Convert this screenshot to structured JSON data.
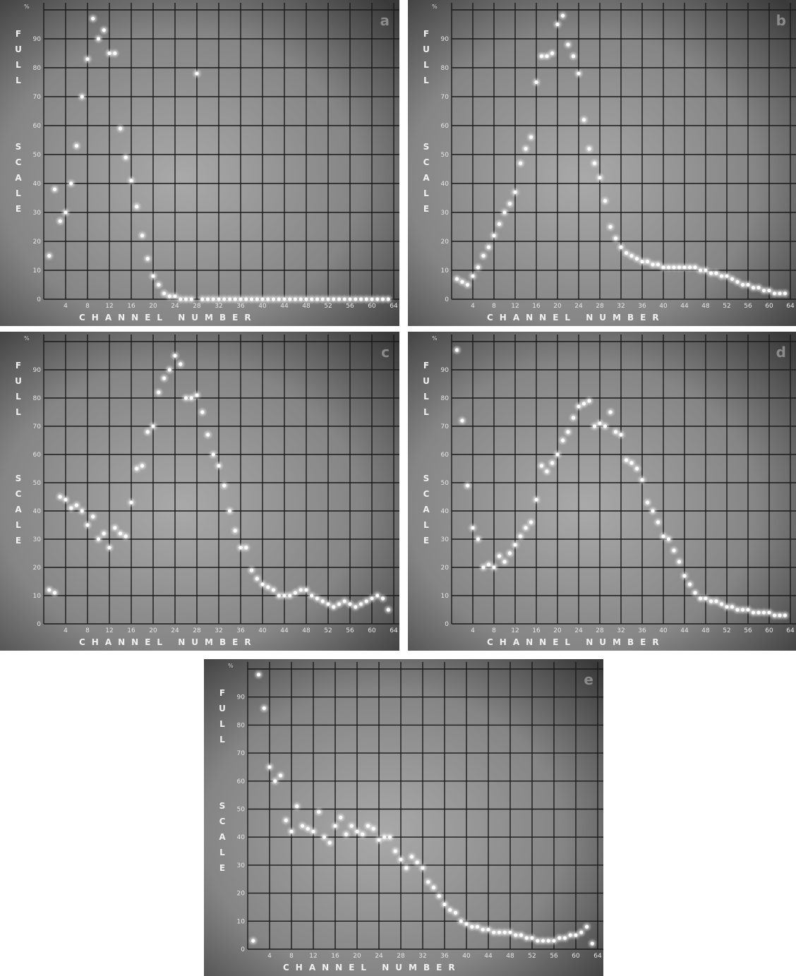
{
  "chart_data": [
    {
      "type": "scatter",
      "panel_label": "a",
      "xlabel": "CHANNEL NUMBER",
      "ylabel": "FULL SCALE",
      "y_unit": "%",
      "xlim": [
        0,
        64
      ],
      "ylim": [
        0,
        100
      ],
      "x_ticks": [
        "4",
        "8",
        "12",
        "16",
        "20",
        "24",
        "28",
        "32",
        "36",
        "40",
        "44",
        "48",
        "52",
        "56",
        "60",
        "64"
      ],
      "y_ticks": [
        "0",
        "10",
        "20",
        "30",
        "40",
        "50",
        "60",
        "70",
        "80",
        "90"
      ],
      "grid": true,
      "series": [
        {
          "x": [
            1,
            2,
            3,
            4,
            5,
            6,
            7,
            8,
            9,
            10,
            11,
            12,
            13,
            14,
            15,
            16,
            17,
            18,
            19,
            20,
            21,
            22,
            23,
            24,
            25,
            26,
            27,
            28,
            29,
            30,
            31,
            32,
            33,
            34,
            35,
            36,
            37,
            38,
            39,
            40,
            41,
            42,
            43,
            44,
            45,
            46,
            47,
            48,
            49,
            50,
            51,
            52,
            53,
            54,
            55,
            56,
            57,
            58,
            59,
            60,
            61,
            62,
            63
          ],
          "y": [
            15,
            38,
            27,
            30,
            40,
            53,
            70,
            83,
            97,
            90,
            93,
            85,
            85,
            59,
            49,
            41,
            32,
            22,
            14,
            8,
            5,
            2,
            1,
            1,
            0,
            0,
            0,
            78,
            0,
            0,
            0,
            0,
            0,
            0,
            0,
            0,
            0,
            0,
            0,
            0,
            0,
            0,
            0,
            0,
            0,
            0,
            0,
            0,
            0,
            0,
            0,
            0,
            0,
            0,
            0,
            0,
            0,
            0,
            0,
            0,
            0,
            0,
            0
          ]
        }
      ]
    },
    {
      "type": "scatter",
      "panel_label": "b",
      "xlabel": "CHANNEL NUMBER",
      "ylabel": "FULL SCALE",
      "y_unit": "%",
      "xlim": [
        0,
        64
      ],
      "ylim": [
        0,
        100
      ],
      "x_ticks": [
        "4",
        "8",
        "12",
        "16",
        "20",
        "24",
        "28",
        "32",
        "36",
        "40",
        "44",
        "48",
        "52",
        "56",
        "60",
        "64"
      ],
      "y_ticks": [
        "0",
        "10",
        "20",
        "30",
        "40",
        "50",
        "60",
        "70",
        "80",
        "90"
      ],
      "grid": true,
      "series": [
        {
          "x": [
            1,
            2,
            3,
            4,
            5,
            6,
            7,
            8,
            9,
            10,
            11,
            12,
            13,
            14,
            15,
            16,
            17,
            18,
            19,
            20,
            21,
            22,
            23,
            24,
            25,
            26,
            27,
            28,
            29,
            30,
            31,
            32,
            33,
            34,
            35,
            36,
            37,
            38,
            39,
            40,
            41,
            42,
            43,
            44,
            45,
            46,
            47,
            48,
            49,
            50,
            51,
            52,
            53,
            54,
            55,
            56,
            57,
            58,
            59,
            60,
            61,
            62,
            63
          ],
          "y": [
            7,
            6,
            5,
            8,
            11,
            15,
            18,
            22,
            26,
            30,
            33,
            37,
            47,
            52,
            56,
            75,
            84,
            84,
            85,
            95,
            98,
            88,
            84,
            78,
            62,
            52,
            47,
            42,
            34,
            25,
            21,
            18,
            16,
            15,
            14,
            13,
            13,
            12,
            12,
            11,
            11,
            11,
            11,
            11,
            11,
            11,
            10,
            10,
            9,
            9,
            8,
            8,
            7,
            6,
            5,
            5,
            4,
            4,
            3,
            3,
            2,
            2,
            2
          ]
        }
      ]
    },
    {
      "type": "scatter",
      "panel_label": "c",
      "xlabel": "CHANNEL NUMBER",
      "ylabel": "FULL SCALE",
      "y_unit": "%",
      "xlim": [
        0,
        64
      ],
      "ylim": [
        0,
        100
      ],
      "x_ticks": [
        "4",
        "8",
        "12",
        "16",
        "20",
        "24",
        "28",
        "32",
        "36",
        "40",
        "44",
        "48",
        "52",
        "56",
        "60",
        "64"
      ],
      "y_ticks": [
        "0",
        "10",
        "20",
        "30",
        "40",
        "50",
        "60",
        "70",
        "80",
        "90"
      ],
      "grid": true,
      "series": [
        {
          "x": [
            1,
            2,
            3,
            4,
            5,
            6,
            7,
            8,
            9,
            10,
            11,
            12,
            13,
            14,
            15,
            16,
            17,
            18,
            19,
            20,
            21,
            22,
            23,
            24,
            25,
            26,
            27,
            28,
            29,
            30,
            31,
            32,
            33,
            34,
            35,
            36,
            37,
            38,
            39,
            40,
            41,
            42,
            43,
            44,
            45,
            46,
            47,
            48,
            49,
            50,
            51,
            52,
            53,
            54,
            55,
            56,
            57,
            58,
            59,
            60,
            61,
            62,
            63
          ],
          "y": [
            12,
            11,
            45,
            44,
            41,
            42,
            40,
            35,
            38,
            30,
            32,
            27,
            34,
            32,
            31,
            43,
            55,
            56,
            68,
            70,
            82,
            87,
            90,
            95,
            92,
            80,
            80,
            81,
            75,
            67,
            60,
            56,
            49,
            40,
            33,
            27,
            27,
            19,
            16,
            14,
            13,
            12,
            10,
            10,
            10,
            11,
            12,
            12,
            10,
            9,
            8,
            7,
            6,
            7,
            8,
            7,
            6,
            7,
            8,
            9,
            10,
            9,
            5
          ]
        }
      ]
    },
    {
      "type": "scatter",
      "panel_label": "d",
      "xlabel": "CHANNEL NUMBER",
      "ylabel": "FULL SCALE",
      "y_unit": "%",
      "xlim": [
        0,
        64
      ],
      "ylim": [
        0,
        100
      ],
      "x_ticks": [
        "4",
        "8",
        "12",
        "16",
        "20",
        "24",
        "28",
        "32",
        "36",
        "40",
        "44",
        "48",
        "52",
        "56",
        "60",
        "64"
      ],
      "y_ticks": [
        "0",
        "10",
        "20",
        "30",
        "40",
        "50",
        "60",
        "70",
        "80",
        "90"
      ],
      "grid": true,
      "series": [
        {
          "x": [
            1,
            2,
            3,
            4,
            5,
            6,
            7,
            8,
            9,
            10,
            11,
            12,
            13,
            14,
            15,
            16,
            17,
            18,
            19,
            20,
            21,
            22,
            23,
            24,
            25,
            26,
            27,
            28,
            29,
            30,
            31,
            32,
            33,
            34,
            35,
            36,
            37,
            38,
            39,
            40,
            41,
            42,
            43,
            44,
            45,
            46,
            47,
            48,
            49,
            50,
            51,
            52,
            53,
            54,
            55,
            56,
            57,
            58,
            59,
            60,
            61,
            62,
            63
          ],
          "y": [
            97,
            72,
            49,
            34,
            30,
            20,
            21,
            20,
            24,
            22,
            25,
            28,
            31,
            34,
            36,
            44,
            56,
            54,
            57,
            60,
            65,
            68,
            73,
            77,
            78,
            79,
            70,
            71,
            70,
            75,
            68,
            67,
            58,
            57,
            55,
            51,
            43,
            40,
            36,
            31,
            30,
            26,
            22,
            17,
            14,
            11,
            9,
            9,
            8,
            8,
            7,
            6,
            6,
            5,
            5,
            5,
            4,
            4,
            4,
            4,
            3,
            3,
            3
          ]
        }
      ]
    },
    {
      "type": "scatter",
      "panel_label": "e",
      "xlabel": "CHANNEL NUMBER",
      "ylabel": "FULL SCALE",
      "y_unit": "%",
      "xlim": [
        0,
        64
      ],
      "ylim": [
        0,
        100
      ],
      "x_ticks": [
        "4",
        "8",
        "12",
        "16",
        "20",
        "24",
        "28",
        "32",
        "36",
        "40",
        "44",
        "48",
        "52",
        "56",
        "60",
        "64"
      ],
      "y_ticks": [
        "0",
        "10",
        "20",
        "30",
        "40",
        "50",
        "60",
        "70",
        "80",
        "90"
      ],
      "grid": true,
      "series": [
        {
          "x": [
            1,
            2,
            3,
            4,
            5,
            6,
            7,
            8,
            9,
            10,
            11,
            12,
            13,
            14,
            15,
            16,
            17,
            18,
            19,
            20,
            21,
            22,
            23,
            24,
            25,
            26,
            27,
            28,
            29,
            30,
            31,
            32,
            33,
            34,
            35,
            36,
            37,
            38,
            39,
            40,
            41,
            42,
            43,
            44,
            45,
            46,
            47,
            48,
            49,
            50,
            51,
            52,
            53,
            54,
            55,
            56,
            57,
            58,
            59,
            60,
            61,
            62,
            63
          ],
          "y": [
            3,
            98,
            86,
            65,
            60,
            62,
            46,
            42,
            51,
            44,
            43,
            42,
            49,
            40,
            38,
            44,
            47,
            41,
            44,
            42,
            41,
            44,
            43,
            39,
            40,
            40,
            35,
            32,
            29,
            33,
            31,
            29,
            24,
            22,
            19,
            16,
            14,
            13,
            10,
            9,
            8,
            8,
            7,
            7,
            6,
            6,
            6,
            6,
            5,
            5,
            4,
            4,
            3,
            3,
            3,
            3,
            4,
            4,
            5,
            5,
            6,
            8,
            2
          ]
        }
      ]
    }
  ]
}
